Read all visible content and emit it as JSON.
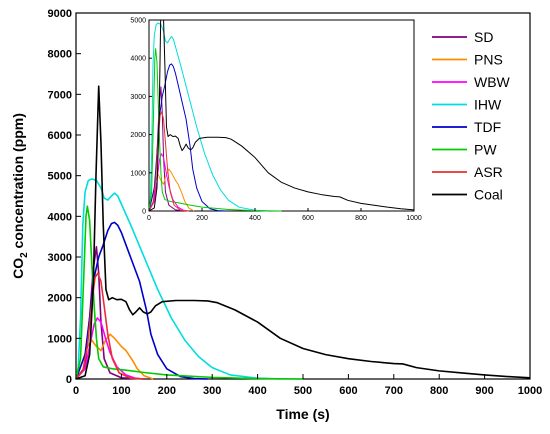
{
  "chart_data": [
    {
      "type": "line",
      "xlabel": "Time (s)",
      "ylabel_parts": {
        "pre": "CO",
        "sub": "2",
        "post": " concentration (ppm)"
      },
      "xlim": [
        0,
        1000
      ],
      "ylim": [
        0,
        9000
      ],
      "xticks": [
        0,
        100,
        200,
        300,
        400,
        500,
        600,
        700,
        800,
        900,
        1000
      ],
      "yticks": [
        0,
        1000,
        2000,
        3000,
        4000,
        5000,
        6000,
        7000,
        8000,
        9000
      ],
      "grid": false,
      "legend_position": "top-right",
      "series": [
        {
          "name": "SD",
          "color": "#800080",
          "points": [
            [
              0,
              0
            ],
            [
              20,
              300
            ],
            [
              30,
              1500
            ],
            [
              38,
              2700
            ],
            [
              45,
              3250
            ],
            [
              50,
              2600
            ],
            [
              55,
              1400
            ],
            [
              62,
              500
            ],
            [
              75,
              150
            ],
            [
              100,
              30
            ],
            [
              150,
              0
            ]
          ]
        },
        {
          "name": "PNS",
          "color": "#ff8c00",
          "points": [
            [
              0,
              0
            ],
            [
              15,
              450
            ],
            [
              25,
              800
            ],
            [
              35,
              950
            ],
            [
              45,
              800
            ],
            [
              55,
              700
            ],
            [
              65,
              950
            ],
            [
              75,
              1100
            ],
            [
              85,
              1000
            ],
            [
              100,
              800
            ],
            [
              110,
              700
            ],
            [
              125,
              450
            ],
            [
              135,
              250
            ],
            [
              150,
              80
            ],
            [
              170,
              0
            ]
          ]
        },
        {
          "name": "WBW",
          "color": "#ff00ff",
          "points": [
            [
              0,
              0
            ],
            [
              20,
              250
            ],
            [
              30,
              800
            ],
            [
              40,
              1350
            ],
            [
              47,
              1500
            ],
            [
              55,
              1400
            ],
            [
              65,
              1000
            ],
            [
              75,
              650
            ],
            [
              90,
              300
            ],
            [
              110,
              100
            ],
            [
              130,
              20
            ],
            [
              150,
              0
            ]
          ]
        },
        {
          "name": "IHW",
          "color": "#00dddd",
          "points": [
            [
              0,
              0
            ],
            [
              5,
              300
            ],
            [
              10,
              1500
            ],
            [
              15,
              3800
            ],
            [
              20,
              4600
            ],
            [
              27,
              4880
            ],
            [
              35,
              4920
            ],
            [
              45,
              4880
            ],
            [
              55,
              4700
            ],
            [
              62,
              4450
            ],
            [
              70,
              4400
            ],
            [
              78,
              4500
            ],
            [
              85,
              4570
            ],
            [
              92,
              4500
            ],
            [
              100,
              4300
            ],
            [
              120,
              3800
            ],
            [
              150,
              3000
            ],
            [
              180,
              2200
            ],
            [
              210,
              1500
            ],
            [
              240,
              950
            ],
            [
              270,
              550
            ],
            [
              300,
              280
            ],
            [
              340,
              100
            ],
            [
              400,
              20
            ],
            [
              450,
              0
            ]
          ]
        },
        {
          "name": "TDF",
          "color": "#0000cd",
          "points": [
            [
              0,
              0
            ],
            [
              20,
              600
            ],
            [
              30,
              1500
            ],
            [
              40,
              2500
            ],
            [
              50,
              3000
            ],
            [
              60,
              3300
            ],
            [
              70,
              3650
            ],
            [
              78,
              3820
            ],
            [
              85,
              3850
            ],
            [
              92,
              3780
            ],
            [
              100,
              3600
            ],
            [
              110,
              3300
            ],
            [
              120,
              3000
            ],
            [
              140,
              2400
            ],
            [
              155,
              1700
            ],
            [
              165,
              1100
            ],
            [
              180,
              600
            ],
            [
              200,
              250
            ],
            [
              230,
              60
            ],
            [
              260,
              10
            ],
            [
              290,
              0
            ]
          ]
        },
        {
          "name": "PW",
          "color": "#00cc00",
          "points": [
            [
              0,
              0
            ],
            [
              10,
              500
            ],
            [
              17,
              2500
            ],
            [
              22,
              4000
            ],
            [
              25,
              4250
            ],
            [
              30,
              3900
            ],
            [
              35,
              2800
            ],
            [
              40,
              1800
            ],
            [
              45,
              1000
            ],
            [
              50,
              500
            ],
            [
              60,
              300
            ],
            [
              80,
              250
            ],
            [
              100,
              230
            ],
            [
              150,
              160
            ],
            [
              200,
              100
            ],
            [
              300,
              40
            ],
            [
              400,
              10
            ],
            [
              500,
              0
            ]
          ]
        },
        {
          "name": "ASR",
          "color": "#e83030",
          "points": [
            [
              0,
              0
            ],
            [
              15,
              200
            ],
            [
              25,
              800
            ],
            [
              35,
              1900
            ],
            [
              42,
              2500
            ],
            [
              48,
              2600
            ],
            [
              55,
              2400
            ],
            [
              62,
              1800
            ],
            [
              70,
              1100
            ],
            [
              80,
              500
            ],
            [
              95,
              150
            ],
            [
              120,
              20
            ],
            [
              150,
              0
            ]
          ]
        },
        {
          "name": "Coal",
          "color": "#000000",
          "points": [
            [
              0,
              0
            ],
            [
              20,
              80
            ],
            [
              30,
              600
            ],
            [
              38,
              2300
            ],
            [
              44,
              5000
            ],
            [
              50,
              7200
            ],
            [
              55,
              5800
            ],
            [
              60,
              3800
            ],
            [
              66,
              2200
            ],
            [
              72,
              1950
            ],
            [
              80,
              2000
            ],
            [
              90,
              1950
            ],
            [
              100,
              1960
            ],
            [
              110,
              1900
            ],
            [
              118,
              1700
            ],
            [
              125,
              1580
            ],
            [
              132,
              1650
            ],
            [
              140,
              1750
            ],
            [
              148,
              1650
            ],
            [
              157,
              1600
            ],
            [
              165,
              1650
            ],
            [
              175,
              1800
            ],
            [
              190,
              1900
            ],
            [
              220,
              1930
            ],
            [
              260,
              1930
            ],
            [
              290,
              1920
            ],
            [
              310,
              1880
            ],
            [
              350,
              1700
            ],
            [
              400,
              1400
            ],
            [
              450,
              1000
            ],
            [
              500,
              750
            ],
            [
              550,
              600
            ],
            [
              600,
              500
            ],
            [
              650,
              430
            ],
            [
              700,
              380
            ],
            [
              720,
              370
            ],
            [
              750,
              280
            ],
            [
              800,
              200
            ],
            [
              850,
              150
            ],
            [
              900,
              100
            ],
            [
              950,
              60
            ],
            [
              1000,
              30
            ]
          ]
        }
      ]
    },
    {
      "type": "line",
      "inset": true,
      "xlim": [
        0,
        1000
      ],
      "ylim": [
        0,
        5000
      ],
      "xticks": [
        0,
        200,
        400,
        600,
        800,
        1000
      ],
      "yticks": [
        0,
        1000,
        2000,
        3000,
        4000,
        5000
      ]
    }
  ],
  "legend": {
    "entries": [
      "SD",
      "PNS",
      "WBW",
      "IHW",
      "TDF",
      "PW",
      "ASR",
      "Coal"
    ],
    "colors": [
      "#800080",
      "#ff8c00",
      "#ff00ff",
      "#00dddd",
      "#0000cd",
      "#00cc00",
      "#e83030",
      "#000000"
    ]
  }
}
